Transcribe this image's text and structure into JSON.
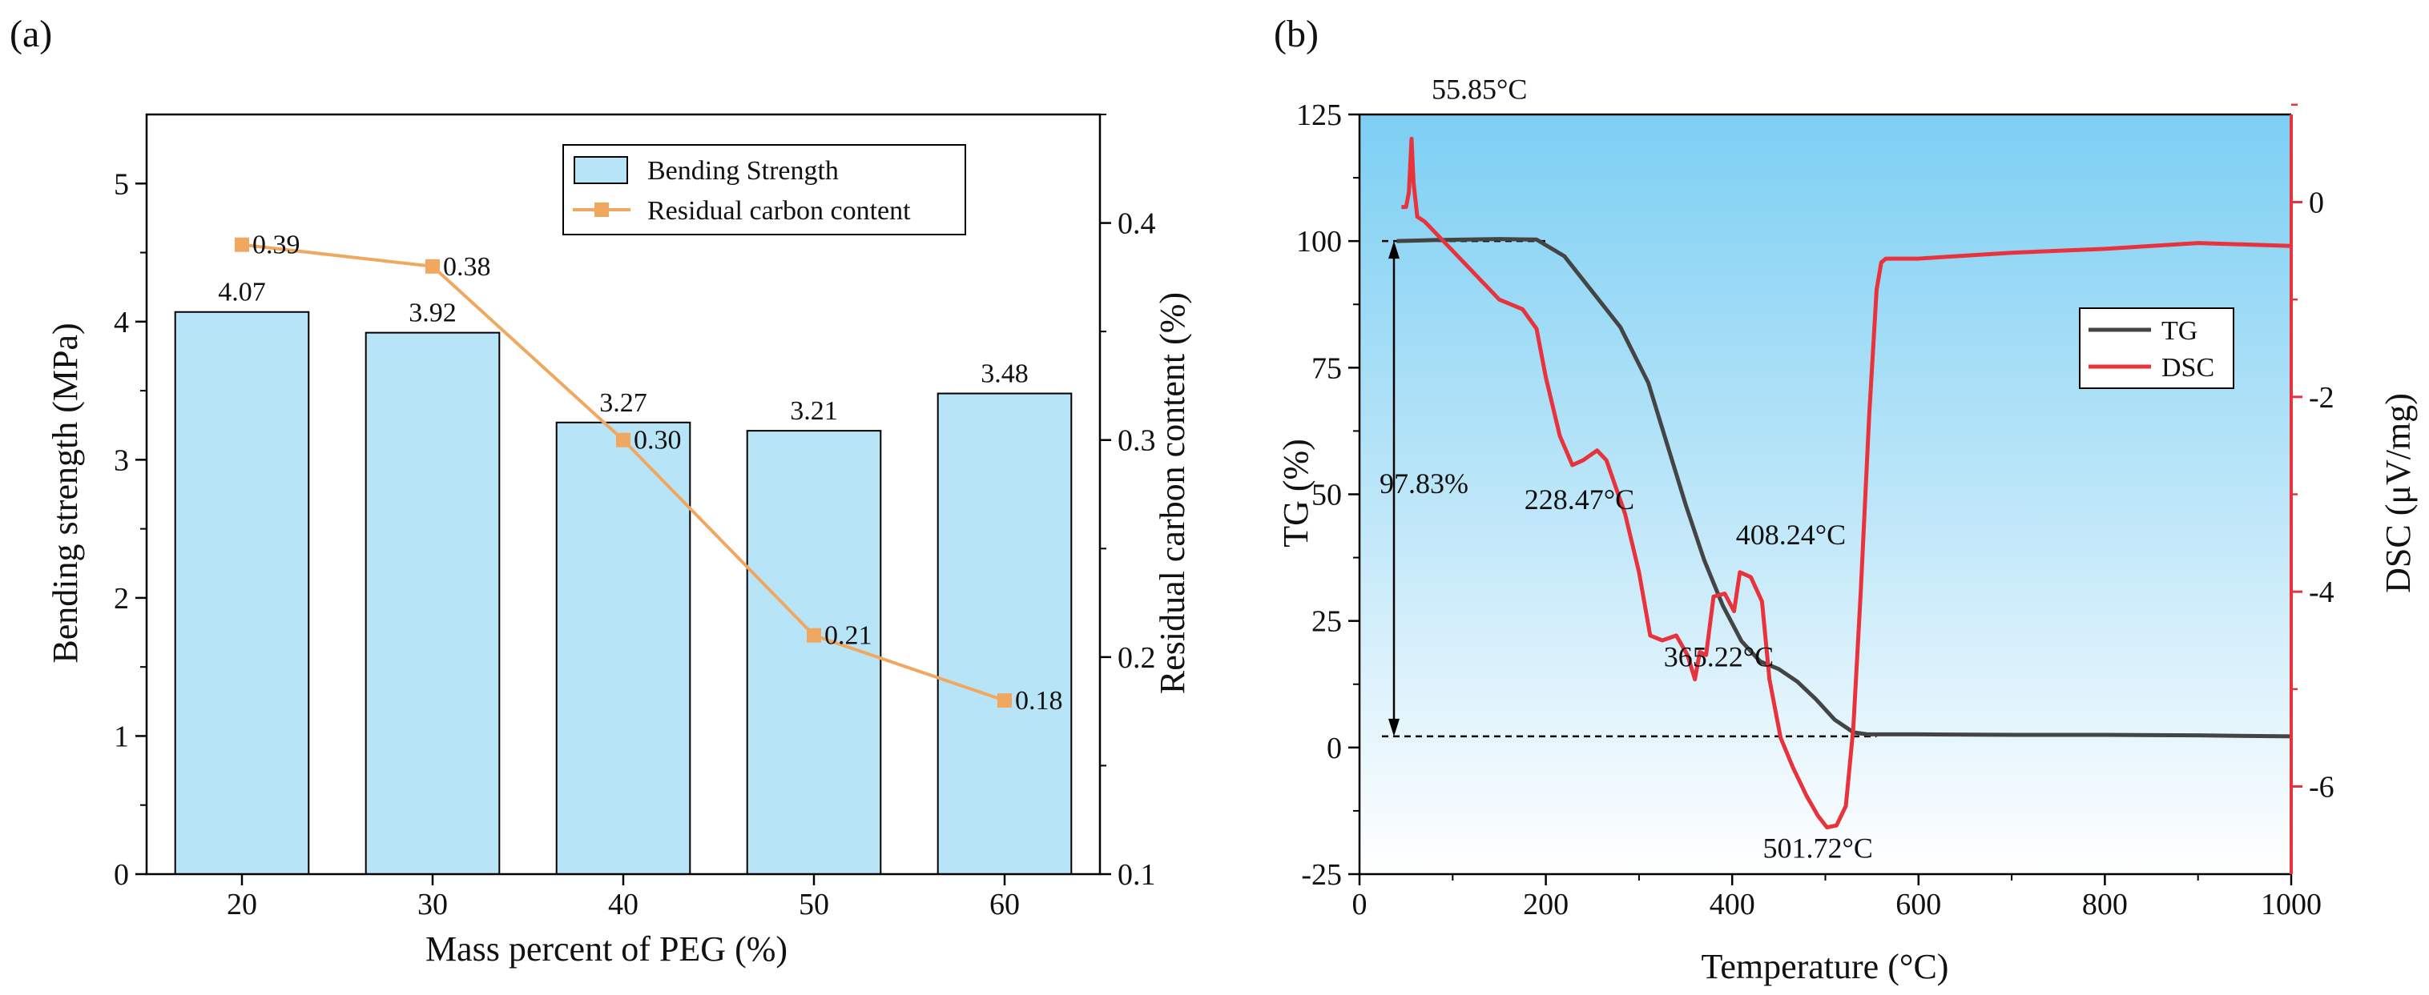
{
  "chart_data": [
    {
      "panel": "(a)",
      "type": "bar",
      "categories": [
        "20",
        "30",
        "40",
        "50",
        "60"
      ],
      "xlabel": "Mass percent of PEG (%)",
      "ylabel": "Bending strength (MPa)",
      "y2label": "Residual carbon content (%)",
      "ylim": [
        0,
        5.5
      ],
      "yticks": [
        "0",
        "1",
        "2",
        "3",
        "4",
        "5"
      ],
      "y2lim": [
        0.1,
        0.45
      ],
      "y2ticks": [
        "0.1",
        "0.2",
        "0.3",
        "0.4"
      ],
      "series": [
        {
          "name": "Bending Strength",
          "axis": "left",
          "type": "bar",
          "color": "#b8e4f8",
          "values": [
            4.07,
            3.92,
            3.27,
            3.21,
            3.48
          ],
          "labels": [
            "4.07",
            "3.92",
            "3.27",
            "3.21",
            "3.48"
          ]
        },
        {
          "name": "Residual carbon content",
          "axis": "right",
          "type": "line",
          "color": "#f0a860",
          "values": [
            0.39,
            0.38,
            0.3,
            0.21,
            0.18
          ],
          "labels": [
            "0.39",
            "0.38",
            "0.30",
            "0.21",
            "0.18"
          ]
        }
      ],
      "legend": [
        "Bending Strength",
        "Residual carbon content"
      ]
    },
    {
      "panel": "(b)",
      "type": "line",
      "xlabel": "Temperature (°C)",
      "ylabel": "TG (%)",
      "y2label": "DSC (μV/mg)",
      "xlim": [
        0,
        1000
      ],
      "xticks": [
        "0",
        "200",
        "400",
        "600",
        "800",
        "1000"
      ],
      "ylim": [
        -25,
        125
      ],
      "yticks": [
        "-25",
        "0",
        "25",
        "50",
        "75",
        "100",
        "125"
      ],
      "y2lim": [
        -6.9,
        0.9
      ],
      "y2ticks": [
        "-6",
        "-4",
        "-2",
        "0"
      ],
      "series": [
        {
          "name": "TG",
          "axis": "left",
          "color": "#444444",
          "x": [
            40,
            80,
            150,
            190,
            220,
            250,
            280,
            310,
            330,
            350,
            370,
            390,
            410,
            430,
            450,
            470,
            490,
            510,
            530,
            545,
            560,
            600,
            700,
            800,
            900,
            1000
          ],
          "y": [
            100,
            100.2,
            100.4,
            100.3,
            97,
            90,
            83,
            72,
            60,
            48,
            37,
            28,
            21,
            17,
            15.5,
            13,
            9.5,
            5.5,
            3,
            2.6,
            2.6,
            2.6,
            2.5,
            2.5,
            2.4,
            2.2
          ]
        },
        {
          "name": "DSC",
          "axis": "right",
          "color": "#e8323c",
          "x": [
            45,
            50,
            53,
            55.85,
            58,
            62,
            70,
            100,
            150,
            175,
            190,
            200,
            215,
            228.47,
            240,
            255,
            265,
            285,
            300,
            312,
            325,
            340,
            352,
            360,
            365.22,
            372,
            380,
            392,
            402,
            408.24,
            420,
            432,
            440,
            452,
            465,
            480,
            492,
            501.72,
            512,
            522,
            530,
            538,
            547,
            555,
            560,
            565,
            600,
            700,
            800,
            900,
            1000
          ],
          "y": [
            -0.05,
            -0.05,
            0.1,
            0.65,
            0.2,
            -0.15,
            -0.2,
            -0.5,
            -1.0,
            -1.1,
            -1.3,
            -1.8,
            -2.4,
            -2.7,
            -2.65,
            -2.55,
            -2.65,
            -3.2,
            -3.8,
            -4.45,
            -4.5,
            -4.45,
            -4.65,
            -4.9,
            -4.62,
            -4.65,
            -4.05,
            -4.02,
            -4.2,
            -3.8,
            -3.85,
            -4.1,
            -4.9,
            -5.5,
            -5.8,
            -6.1,
            -6.3,
            -6.42,
            -6.4,
            -6.2,
            -5.4,
            -4.0,
            -2.2,
            -0.9,
            -0.62,
            -0.58,
            -0.58,
            -0.52,
            -0.48,
            -0.42,
            -0.45
          ]
        }
      ],
      "legend": [
        "TG",
        "DSC"
      ],
      "annotations": [
        {
          "text": "55.85°C",
          "x": 55.85
        },
        {
          "text": "228.47°C",
          "x": 228.47
        },
        {
          "text": "365.22°C",
          "x": 365.22
        },
        {
          "text": "408.24°C",
          "x": 408.24
        },
        {
          "text": "501.72°C",
          "x": 501.72
        },
        {
          "text": "97.83%",
          "note": "mass loss"
        }
      ]
    }
  ]
}
